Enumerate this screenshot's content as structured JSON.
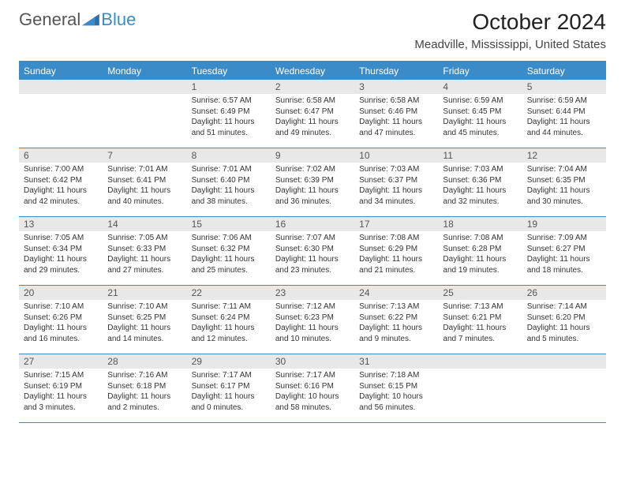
{
  "logo": {
    "text1": "General",
    "text2": "Blue"
  },
  "title": "October 2024",
  "location": "Meadville, Mississippi, United States",
  "colors": {
    "accent": "#3b8bc9",
    "header_bg": "#3b8bc9",
    "header_text": "#ffffff",
    "daynum_bg": "#e8e8e8",
    "body_text": "#333333",
    "background": "#ffffff"
  },
  "day_names": [
    "Sunday",
    "Monday",
    "Tuesday",
    "Wednesday",
    "Thursday",
    "Friday",
    "Saturday"
  ],
  "weeks": [
    [
      null,
      null,
      {
        "n": "1",
        "sr": "Sunrise: 6:57 AM",
        "ss": "Sunset: 6:49 PM",
        "dl": "Daylight: 11 hours and 51 minutes."
      },
      {
        "n": "2",
        "sr": "Sunrise: 6:58 AM",
        "ss": "Sunset: 6:47 PM",
        "dl": "Daylight: 11 hours and 49 minutes."
      },
      {
        "n": "3",
        "sr": "Sunrise: 6:58 AM",
        "ss": "Sunset: 6:46 PM",
        "dl": "Daylight: 11 hours and 47 minutes."
      },
      {
        "n": "4",
        "sr": "Sunrise: 6:59 AM",
        "ss": "Sunset: 6:45 PM",
        "dl": "Daylight: 11 hours and 45 minutes."
      },
      {
        "n": "5",
        "sr": "Sunrise: 6:59 AM",
        "ss": "Sunset: 6:44 PM",
        "dl": "Daylight: 11 hours and 44 minutes."
      }
    ],
    [
      {
        "n": "6",
        "sr": "Sunrise: 7:00 AM",
        "ss": "Sunset: 6:42 PM",
        "dl": "Daylight: 11 hours and 42 minutes."
      },
      {
        "n": "7",
        "sr": "Sunrise: 7:01 AM",
        "ss": "Sunset: 6:41 PM",
        "dl": "Daylight: 11 hours and 40 minutes."
      },
      {
        "n": "8",
        "sr": "Sunrise: 7:01 AM",
        "ss": "Sunset: 6:40 PM",
        "dl": "Daylight: 11 hours and 38 minutes."
      },
      {
        "n": "9",
        "sr": "Sunrise: 7:02 AM",
        "ss": "Sunset: 6:39 PM",
        "dl": "Daylight: 11 hours and 36 minutes."
      },
      {
        "n": "10",
        "sr": "Sunrise: 7:03 AM",
        "ss": "Sunset: 6:37 PM",
        "dl": "Daylight: 11 hours and 34 minutes."
      },
      {
        "n": "11",
        "sr": "Sunrise: 7:03 AM",
        "ss": "Sunset: 6:36 PM",
        "dl": "Daylight: 11 hours and 32 minutes."
      },
      {
        "n": "12",
        "sr": "Sunrise: 7:04 AM",
        "ss": "Sunset: 6:35 PM",
        "dl": "Daylight: 11 hours and 30 minutes."
      }
    ],
    [
      {
        "n": "13",
        "sr": "Sunrise: 7:05 AM",
        "ss": "Sunset: 6:34 PM",
        "dl": "Daylight: 11 hours and 29 minutes."
      },
      {
        "n": "14",
        "sr": "Sunrise: 7:05 AM",
        "ss": "Sunset: 6:33 PM",
        "dl": "Daylight: 11 hours and 27 minutes."
      },
      {
        "n": "15",
        "sr": "Sunrise: 7:06 AM",
        "ss": "Sunset: 6:32 PM",
        "dl": "Daylight: 11 hours and 25 minutes."
      },
      {
        "n": "16",
        "sr": "Sunrise: 7:07 AM",
        "ss": "Sunset: 6:30 PM",
        "dl": "Daylight: 11 hours and 23 minutes."
      },
      {
        "n": "17",
        "sr": "Sunrise: 7:08 AM",
        "ss": "Sunset: 6:29 PM",
        "dl": "Daylight: 11 hours and 21 minutes."
      },
      {
        "n": "18",
        "sr": "Sunrise: 7:08 AM",
        "ss": "Sunset: 6:28 PM",
        "dl": "Daylight: 11 hours and 19 minutes."
      },
      {
        "n": "19",
        "sr": "Sunrise: 7:09 AM",
        "ss": "Sunset: 6:27 PM",
        "dl": "Daylight: 11 hours and 18 minutes."
      }
    ],
    [
      {
        "n": "20",
        "sr": "Sunrise: 7:10 AM",
        "ss": "Sunset: 6:26 PM",
        "dl": "Daylight: 11 hours and 16 minutes."
      },
      {
        "n": "21",
        "sr": "Sunrise: 7:10 AM",
        "ss": "Sunset: 6:25 PM",
        "dl": "Daylight: 11 hours and 14 minutes."
      },
      {
        "n": "22",
        "sr": "Sunrise: 7:11 AM",
        "ss": "Sunset: 6:24 PM",
        "dl": "Daylight: 11 hours and 12 minutes."
      },
      {
        "n": "23",
        "sr": "Sunrise: 7:12 AM",
        "ss": "Sunset: 6:23 PM",
        "dl": "Daylight: 11 hours and 10 minutes."
      },
      {
        "n": "24",
        "sr": "Sunrise: 7:13 AM",
        "ss": "Sunset: 6:22 PM",
        "dl": "Daylight: 11 hours and 9 minutes."
      },
      {
        "n": "25",
        "sr": "Sunrise: 7:13 AM",
        "ss": "Sunset: 6:21 PM",
        "dl": "Daylight: 11 hours and 7 minutes."
      },
      {
        "n": "26",
        "sr": "Sunrise: 7:14 AM",
        "ss": "Sunset: 6:20 PM",
        "dl": "Daylight: 11 hours and 5 minutes."
      }
    ],
    [
      {
        "n": "27",
        "sr": "Sunrise: 7:15 AM",
        "ss": "Sunset: 6:19 PM",
        "dl": "Daylight: 11 hours and 3 minutes."
      },
      {
        "n": "28",
        "sr": "Sunrise: 7:16 AM",
        "ss": "Sunset: 6:18 PM",
        "dl": "Daylight: 11 hours and 2 minutes."
      },
      {
        "n": "29",
        "sr": "Sunrise: 7:17 AM",
        "ss": "Sunset: 6:17 PM",
        "dl": "Daylight: 11 hours and 0 minutes."
      },
      {
        "n": "30",
        "sr": "Sunrise: 7:17 AM",
        "ss": "Sunset: 6:16 PM",
        "dl": "Daylight: 10 hours and 58 minutes."
      },
      {
        "n": "31",
        "sr": "Sunrise: 7:18 AM",
        "ss": "Sunset: 6:15 PM",
        "dl": "Daylight: 10 hours and 56 minutes."
      },
      null,
      null
    ]
  ]
}
